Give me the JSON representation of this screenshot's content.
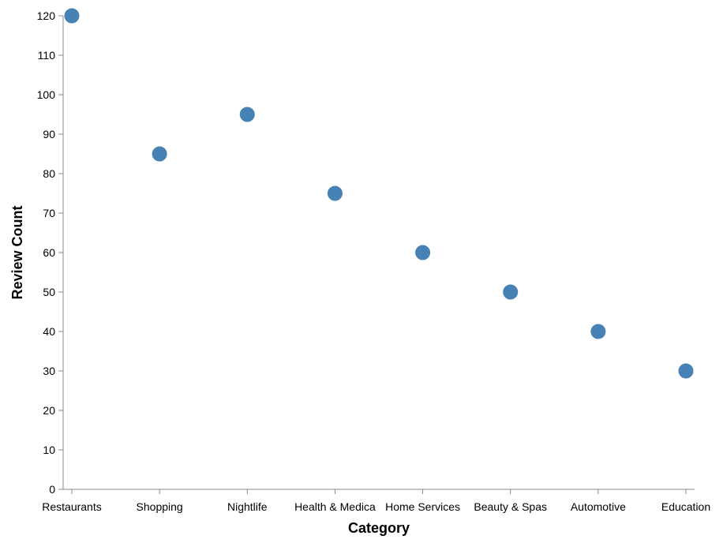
{
  "chart_data": {
    "type": "scatter",
    "title": "",
    "xlabel": "Category",
    "ylabel": "Review Count",
    "categories": [
      "Restaurants",
      "Shopping",
      "Nightlife",
      "Health & Medical",
      "Home Services",
      "Beauty & Spas",
      "Automotive",
      "Education"
    ],
    "category_display_labels": [
      "Restaurants",
      "Shopping",
      "Nightlife",
      "Health & Medica",
      "Home Services",
      "Beauty & Spas",
      "Automotive",
      "Education"
    ],
    "values": [
      120,
      85,
      95,
      75,
      60,
      50,
      40,
      30
    ],
    "ylim": [
      0,
      120
    ],
    "yticks": [
      0,
      10,
      20,
      30,
      40,
      50,
      60,
      70,
      80,
      90,
      100,
      110,
      120
    ],
    "grid": false,
    "legend": "none",
    "colors": {
      "point": "#4682b4",
      "axis": "#888888",
      "text": "#000000"
    }
  }
}
